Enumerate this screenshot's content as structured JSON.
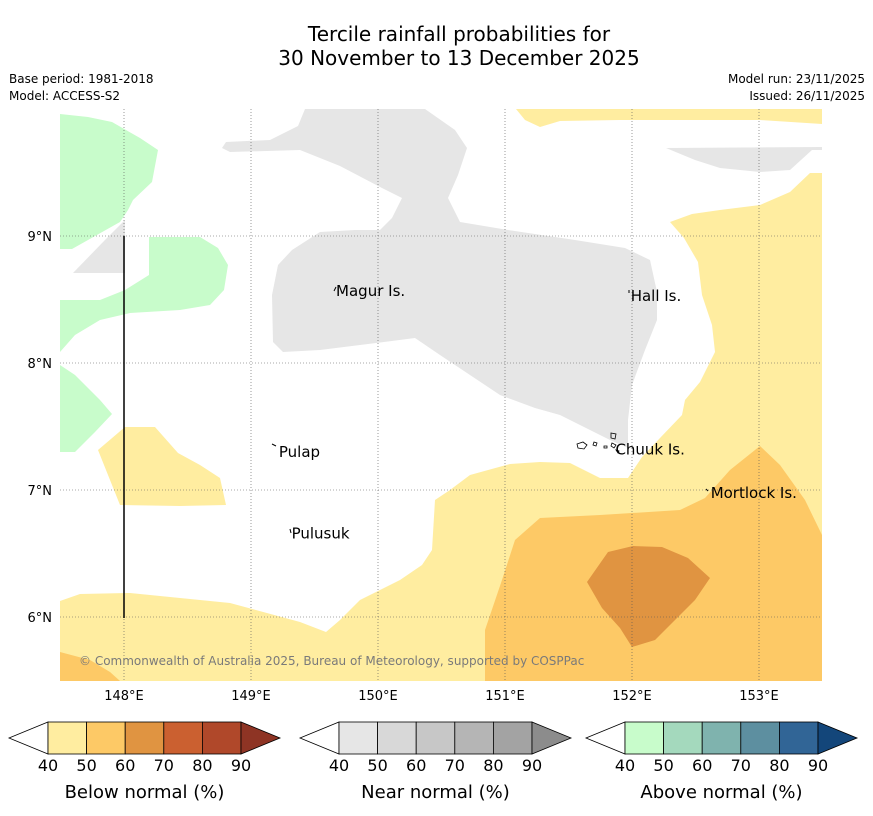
{
  "title_line1": "Tercile rainfall probabilities for",
  "title_line2": "30 November to 13 December 2025",
  "meta_left": {
    "base_period": "Base period: 1981-2018",
    "model": "Model: ACCESS-S2"
  },
  "meta_right": {
    "model_run": "Model run: 23/11/2025",
    "issued": "Issued: 26/11/2025"
  },
  "axes": {
    "x_ticks": [
      "148°E",
      "149°E",
      "150°E",
      "151°E",
      "152°E",
      "153°E"
    ],
    "y_ticks": [
      "9°N",
      "8°N",
      "7°N",
      "6°N"
    ],
    "lon_range": [
      147.5,
      153.5
    ],
    "lat_range": [
      5.5,
      10.0
    ]
  },
  "places": [
    {
      "name": "Magur Is.",
      "lon": 149.65,
      "lat": 8.57
    },
    {
      "name": "Hall Is.",
      "lon": 151.97,
      "lat": 8.53
    },
    {
      "name": "Pulap",
      "lon": 149.2,
      "lat": 7.3
    },
    {
      "name": "Chuuk Is.",
      "lon": 151.85,
      "lat": 7.32
    },
    {
      "name": "Mortlock Is.",
      "lon": 152.6,
      "lat": 6.98
    },
    {
      "name": "Pulusuk",
      "lon": 149.3,
      "lat": 6.66
    }
  ],
  "copyright": "© Commonwealth of Australia 2025, Bureau of Meteorology, supported by COSPPac",
  "colorbars": [
    {
      "title": "Below normal (%)",
      "labels": [
        "40",
        "50",
        "60",
        "70",
        "80",
        "90"
      ],
      "colors": [
        "#ffeda0",
        "#fdc966",
        "#e09441",
        "#cb6030",
        "#b0482a",
        "#8e3424"
      ]
    },
    {
      "title": "Near normal (%)",
      "labels": [
        "40",
        "50",
        "60",
        "70",
        "80",
        "90"
      ],
      "colors": [
        "#e6e6e6",
        "#d8d8d8",
        "#c7c7c7",
        "#b5b5b5",
        "#a3a3a3",
        "#8c8c8c"
      ]
    },
    {
      "title": "Above normal (%)",
      "labels": [
        "40",
        "50",
        "60",
        "70",
        "80",
        "90"
      ],
      "colors": [
        "#c8fccb",
        "#a4d9bd",
        "#7fb3ae",
        "#5d8fa0",
        "#316596",
        "#13467a"
      ]
    }
  ],
  "colors": {
    "below_40": "#ffeda0",
    "below_50": "#fdc966",
    "below_60": "#e09441",
    "near_40": "#e6e6e6",
    "above_40": "#c8fccb"
  }
}
